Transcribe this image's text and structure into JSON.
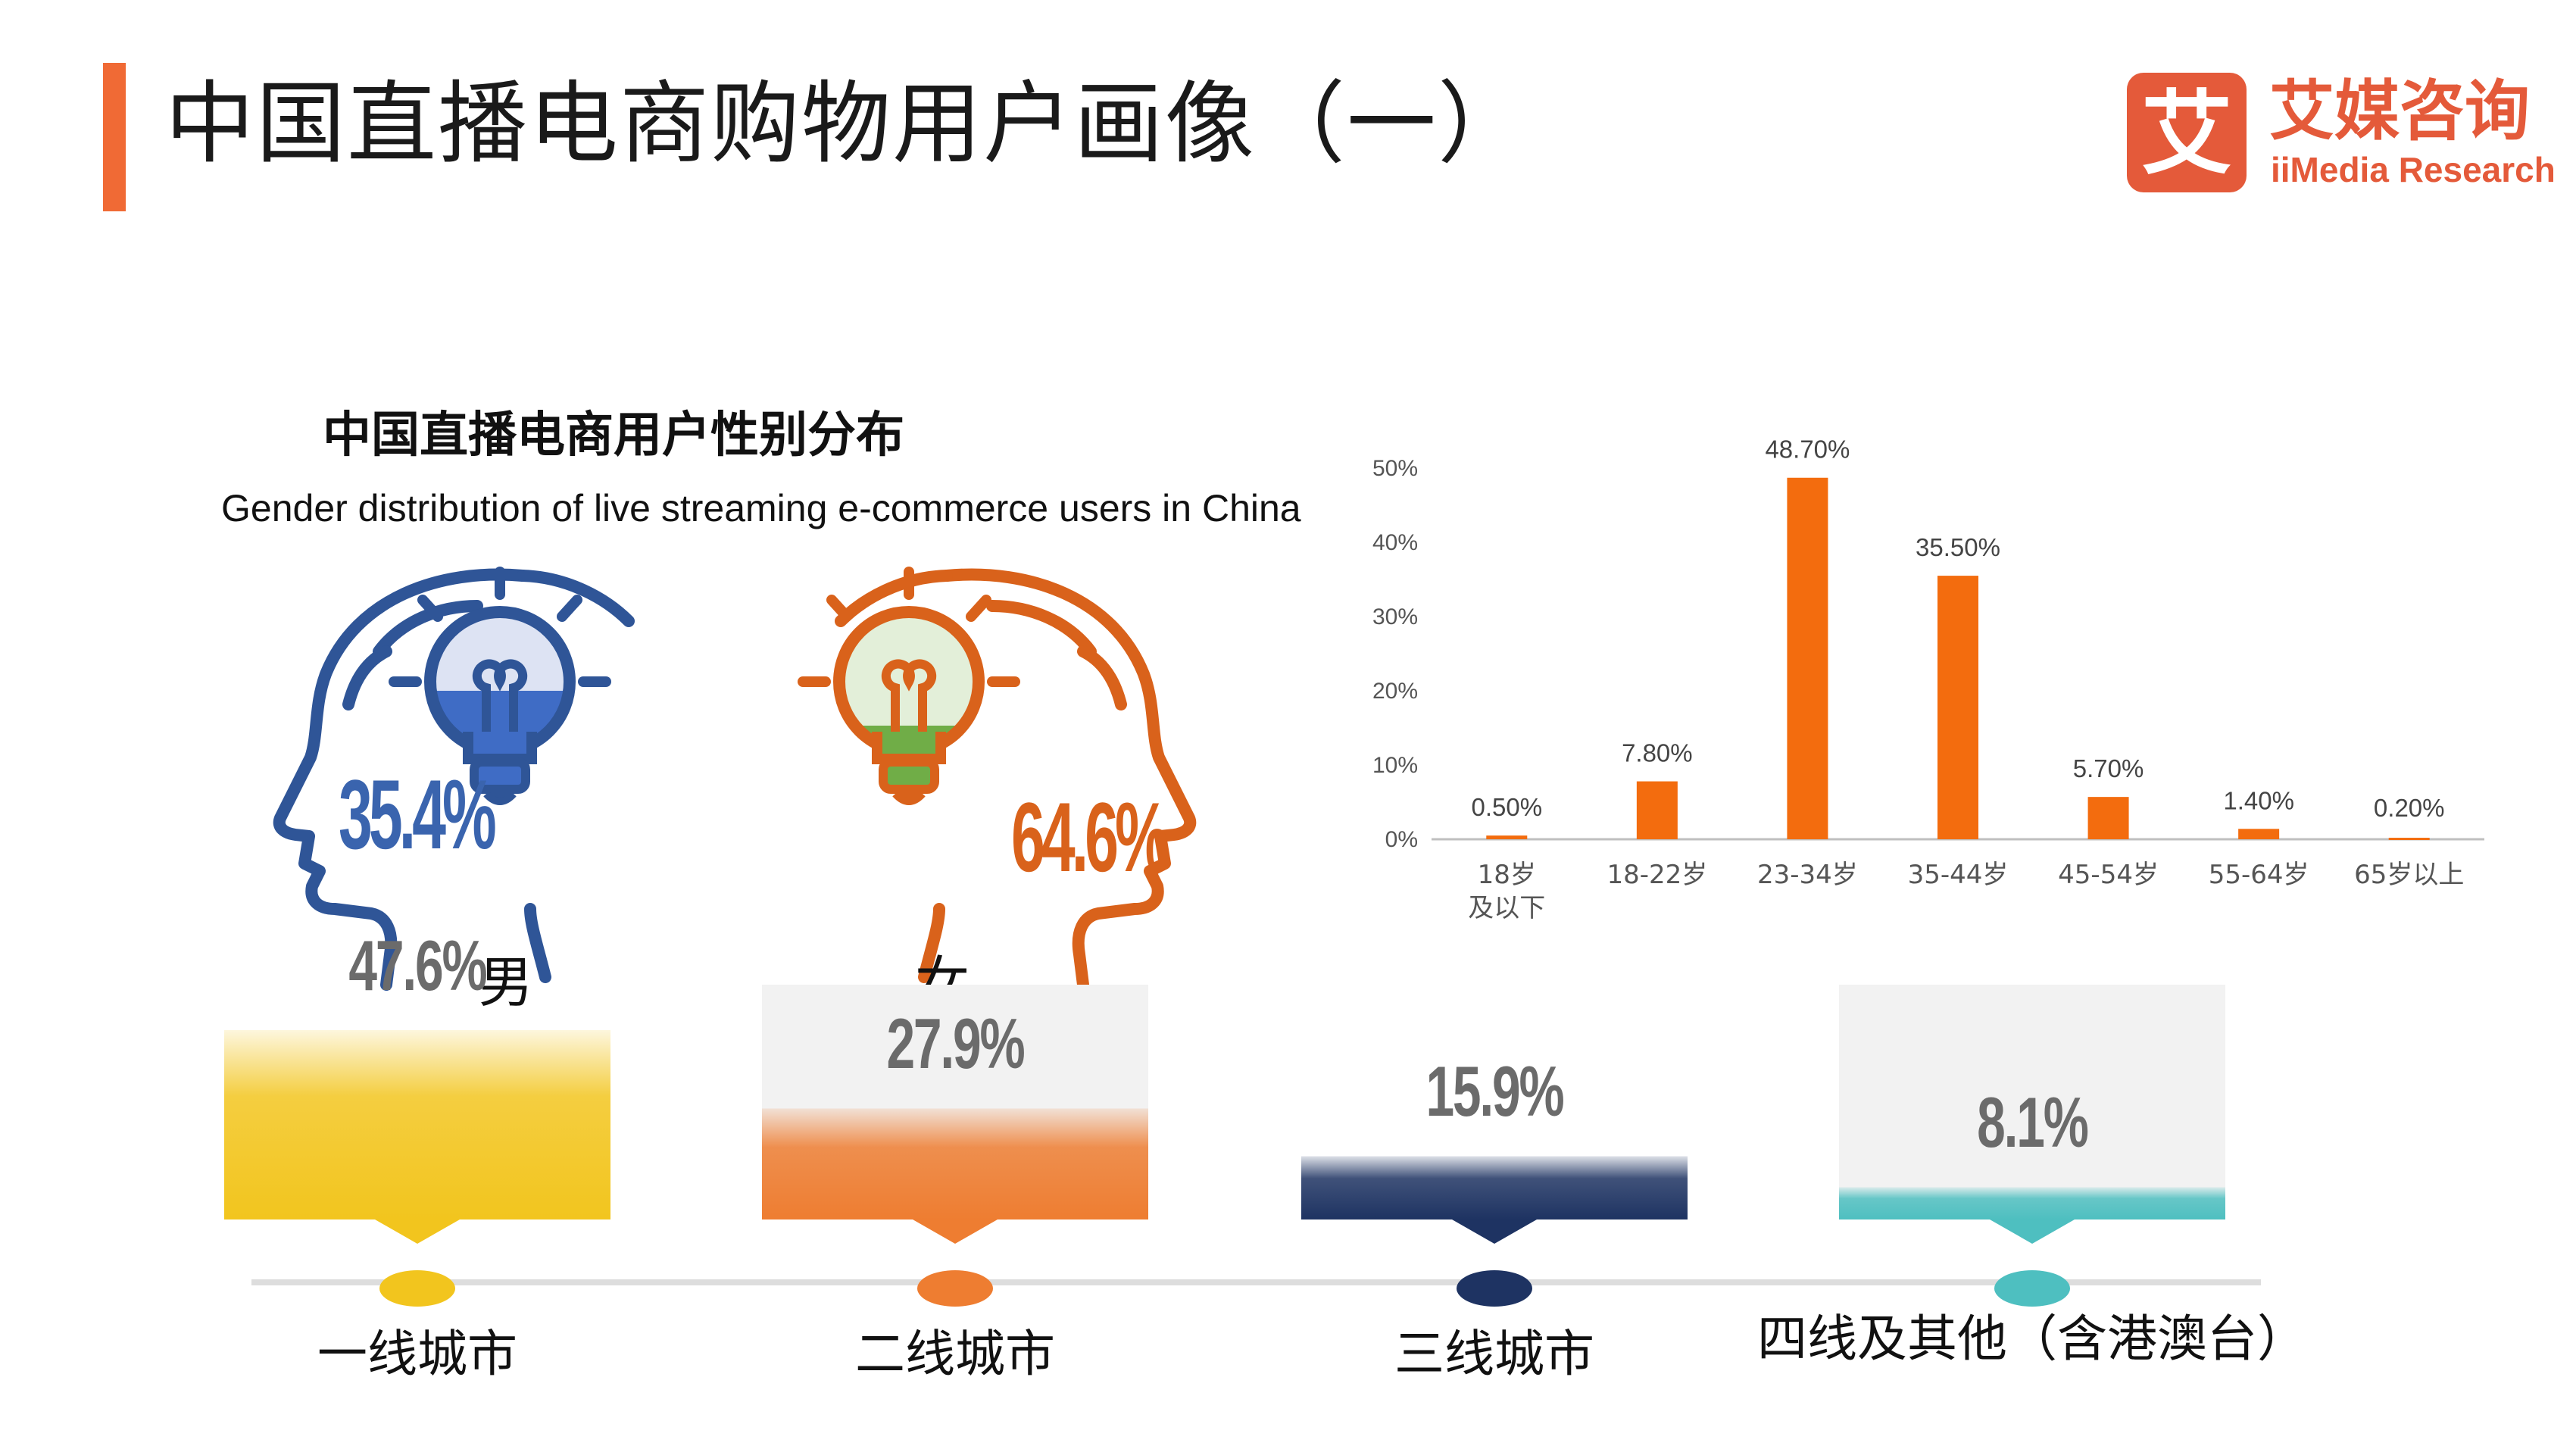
{
  "header": {
    "title": "中国直播电商购物用户画像（一）",
    "accent_color": "#F06A35"
  },
  "logo": {
    "mark_char": "艾",
    "name_cn": "艾媒咨询",
    "name_en": "iiMedia Research",
    "color": "#E45A3A"
  },
  "gender_section": {
    "title": "中国直播电商用户性别分布",
    "subtitle": "Gender distribution of live streaming e-commerce users in China",
    "male": {
      "label": "男",
      "value": "35.4%",
      "color": "#3A64AE"
    },
    "female": {
      "label": "女",
      "value": "64.6%",
      "color": "#D9621B"
    }
  },
  "chart_data": [
    {
      "type": "bar",
      "categories": [
        "18岁\n及以下",
        "18-22岁",
        "23-34岁",
        "35-44岁",
        "45-54岁",
        "55-64岁",
        "65岁以上"
      ],
      "values": [
        0.5,
        7.8,
        48.7,
        35.5,
        5.7,
        1.4,
        0.2
      ],
      "data_labels": [
        "0.50%",
        "7.80%",
        "48.70%",
        "35.50%",
        "5.70%",
        "1.40%",
        "0.20%"
      ],
      "yticks": [
        "0%",
        "10%",
        "20%",
        "30%",
        "40%",
        "50%"
      ],
      "ylim": [
        0,
        50
      ],
      "color": "#F36C0E",
      "title": "",
      "xlabel": "",
      "ylabel": ""
    },
    {
      "type": "bar",
      "categories": [
        "一线城市",
        "二线城市",
        "三线城市",
        "四线及其他（含港澳台）"
      ],
      "values": [
        47.6,
        27.9,
        15.9,
        8.1
      ],
      "data_labels": [
        "47.6%",
        "27.9%",
        "15.9%",
        "8.1%"
      ],
      "colors": [
        "#F2C51E",
        "#EE7D31",
        "#1E3362",
        "#4EBFC0"
      ],
      "title": "",
      "xlabel": "",
      "ylabel": ""
    }
  ]
}
